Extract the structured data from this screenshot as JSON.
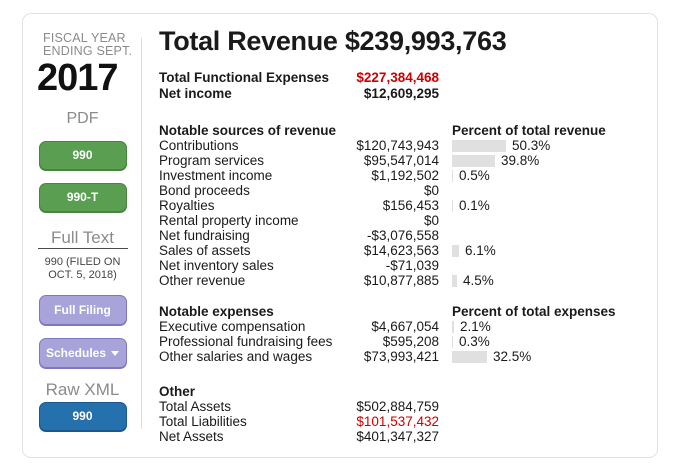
{
  "colors": {
    "accent_red": "#cc0000",
    "button_green": "#5a9e52",
    "button_purple": "#a8a3d9",
    "button_blue": "#2471ae",
    "bar_gray": "#e0e0e0"
  },
  "sidebar": {
    "fiscal_year_line1": "FISCAL YEAR",
    "fiscal_year_line2": "ENDING SEPT.",
    "year": "2017",
    "pdf_heading": "PDF",
    "pdf_990_button": "990",
    "pdf_990t_button": "990-T",
    "full_text_heading": "Full Text",
    "filing_note_line1": "990 (FILED ON",
    "filing_note_line2": "OCT. 5, 2018)",
    "full_filing_button": "Full Filing",
    "schedules_button": "Schedules",
    "raw_xml_heading": "Raw XML",
    "raw_xml_990_button": "990"
  },
  "header": {
    "title_label": "Total Revenue",
    "title_value": "$239,993,763",
    "rows": [
      {
        "label": "Total Functional Expenses",
        "value": "$227,384,468"
      },
      {
        "label": "Net income",
        "value": "$12,609,295"
      }
    ]
  },
  "revenue": {
    "heading": "Notable sources of revenue",
    "percent_heading": "Percent of total revenue",
    "rows": [
      {
        "label": "Contributions",
        "amount": "$120,743,943",
        "pct": 50.3,
        "pct_label": "50.3%"
      },
      {
        "label": "Program services",
        "amount": "$95,547,014",
        "pct": 39.8,
        "pct_label": "39.8%"
      },
      {
        "label": "Investment income",
        "amount": "$1,192,502",
        "pct": 0.5,
        "pct_label": "0.5%"
      },
      {
        "label": "Bond proceeds",
        "amount": "$0",
        "pct": null,
        "pct_label": ""
      },
      {
        "label": "Royalties",
        "amount": "$156,453",
        "pct": 0.1,
        "pct_label": "0.1%"
      },
      {
        "label": "Rental property income",
        "amount": "$0",
        "pct": null,
        "pct_label": ""
      },
      {
        "label": "Net fundraising",
        "amount": "-$3,076,558",
        "pct": null,
        "pct_label": ""
      },
      {
        "label": "Sales of assets",
        "amount": "$14,623,563",
        "pct": 6.1,
        "pct_label": "6.1%"
      },
      {
        "label": "Net inventory sales",
        "amount": "-$71,039",
        "pct": null,
        "pct_label": ""
      },
      {
        "label": "Other revenue",
        "amount": "$10,877,885",
        "pct": 4.5,
        "pct_label": "4.5%"
      }
    ]
  },
  "expenses": {
    "heading": "Notable expenses",
    "percent_heading": "Percent of total expenses",
    "rows": [
      {
        "label": "Executive compensation",
        "amount": "$4,667,054",
        "pct": 2.1,
        "pct_label": "2.1%"
      },
      {
        "label": "Professional fundraising fees",
        "amount": "$595,208",
        "pct": 0.3,
        "pct_label": "0.3%"
      },
      {
        "label": "Other salaries and wages",
        "amount": "$73,993,421",
        "pct": 32.5,
        "pct_label": "32.5%"
      }
    ]
  },
  "other": {
    "heading": "Other",
    "rows": [
      {
        "label": "Total Assets",
        "amount": "$502,884,759"
      },
      {
        "label": "Total Liabilities",
        "amount": "$101,537,432"
      },
      {
        "label": "Net Assets",
        "amount": "$401,347,327"
      }
    ]
  }
}
